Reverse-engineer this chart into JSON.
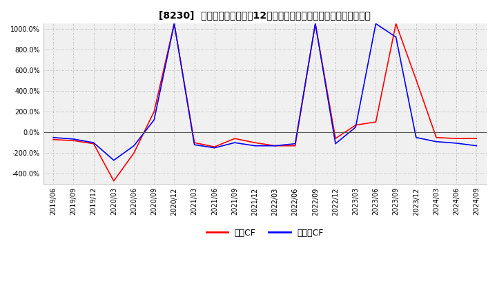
{
  "title": "[8230]  キャッシュフローの12か月移動合計の対前年同期増減率の推移",
  "ylim": [
    -500,
    1050
  ],
  "yticks": [
    -400,
    -200,
    0,
    200,
    400,
    600,
    800,
    1000
  ],
  "legend": [
    "営業CF",
    "フリーCF"
  ],
  "line_colors": [
    "#ff0000",
    "#0000ff"
  ],
  "background_color": "#f0f0f0",
  "x_labels": [
    "2019/06",
    "2019/09",
    "2019/12",
    "2020/03",
    "2020/06",
    "2020/09",
    "2020/12",
    "2021/03",
    "2021/06",
    "2021/09",
    "2021/12",
    "2022/03",
    "2022/06",
    "2022/09",
    "2022/12",
    "2023/03",
    "2023/06",
    "2023/09",
    "2023/12",
    "2024/03",
    "2024/06",
    "2024/09"
  ],
  "operating_cf": [
    -70,
    -80,
    -110,
    -470,
    -200,
    200,
    1050,
    -100,
    -140,
    -60,
    -100,
    -130,
    -130,
    1050,
    -60,
    70,
    100,
    1050,
    510,
    -50,
    -60,
    -60
  ],
  "free_cf": [
    -50,
    -65,
    -100,
    -270,
    -130,
    120,
    1050,
    -120,
    -150,
    -100,
    -130,
    -130,
    -110,
    1050,
    -110,
    50,
    1050,
    920,
    -50,
    -90,
    -105,
    -130
  ],
  "n_points": 22
}
